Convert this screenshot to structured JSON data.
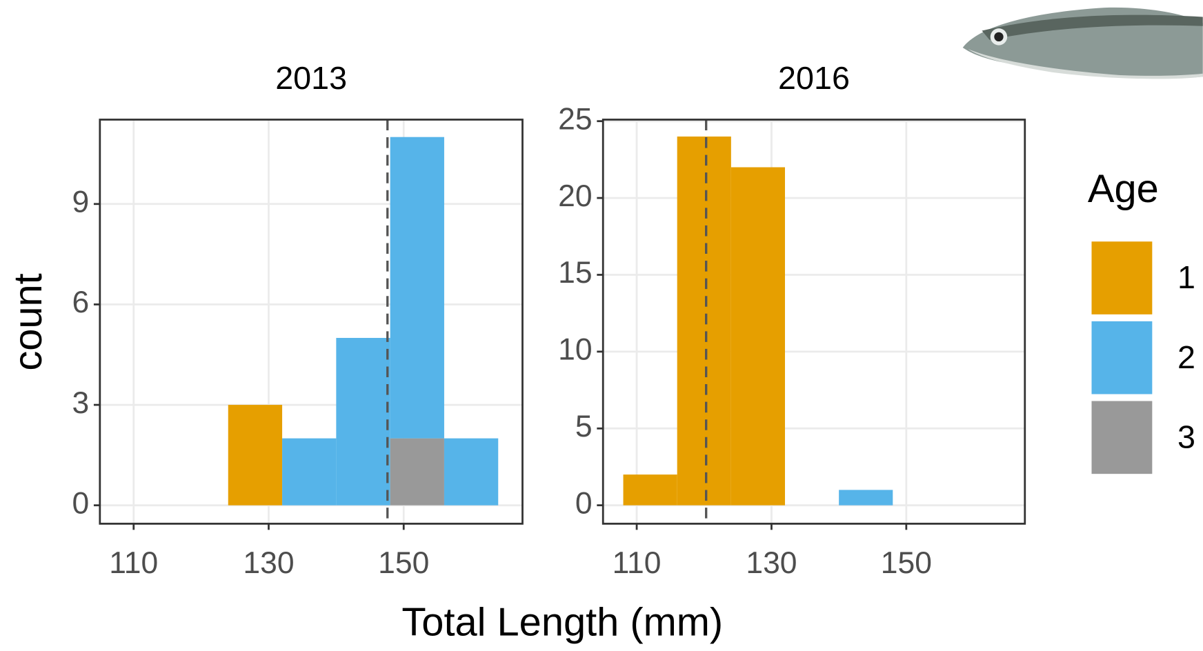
{
  "chart_data": {
    "type": "histogram",
    "xlabel": "Total Length (mm)",
    "ylabel": "count",
    "grid": true,
    "legend": {
      "title": "Age",
      "position": "right"
    },
    "groups": [
      {
        "name": "1",
        "color": "#E69F00"
      },
      {
        "name": "2",
        "color": "#56B4E9"
      },
      {
        "name": "3",
        "color": "#999999"
      }
    ],
    "panels": [
      {
        "title": "2013",
        "bins": [
          124,
          132,
          140,
          148,
          156,
          164
        ],
        "series": [
          {
            "values": [
              3,
              0,
              0,
              0,
              0
            ]
          },
          {
            "values": [
              0,
              2,
              5,
              9,
              2
            ]
          },
          {
            "values": [
              0,
              0,
              0,
              2,
              0
            ]
          }
        ],
        "vline": 147.6,
        "xlim": [
          105,
          167.6
        ],
        "xticks": [
          110,
          130,
          150
        ],
        "ylim": [
          -0.55,
          11.52
        ],
        "yticks": [
          0,
          3,
          6,
          9
        ]
      },
      {
        "title": "2016",
        "bins": [
          108,
          116,
          124,
          132,
          140,
          148
        ],
        "series": [
          {
            "values": [
              2,
              24,
              22,
              0,
              0
            ]
          },
          {
            "values": [
              0,
              0,
              0,
              0,
              1
            ]
          },
          {
            "values": [
              0,
              0,
              0,
              0,
              0
            ]
          }
        ],
        "vline": 120.3,
        "xlim": [
          105,
          167.6
        ],
        "xticks": [
          110,
          130,
          150
        ],
        "ylim": [
          -1.2,
          25.1
        ],
        "yticks": [
          0,
          5,
          10,
          15,
          20,
          25
        ]
      }
    ]
  }
}
